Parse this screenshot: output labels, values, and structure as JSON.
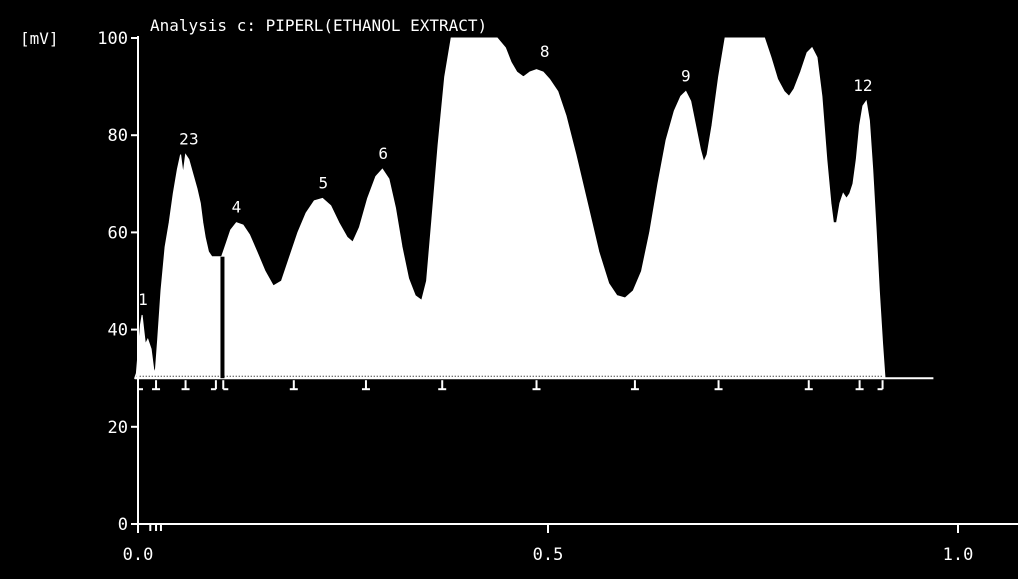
{
  "chart_data": {
    "type": "area",
    "title": "Analysis c: PIPERL(ETHANOL EXTRACT)",
    "ylabel": "[mV]",
    "xlabel": "",
    "xlim": [
      0.0,
      1.0
    ],
    "ylim": [
      0,
      100
    ],
    "x_ticks": [
      0.0,
      0.5,
      1.0
    ],
    "x_tick_labels": [
      "0.0",
      "0.5",
      "1.0"
    ],
    "y_ticks": [
      0,
      20,
      40,
      60,
      80,
      100
    ],
    "y_tick_labels": [
      "0",
      "20",
      "40",
      "60",
      "80",
      "100"
    ],
    "baseline": 30,
    "clip_max": 100,
    "fill_color": "#ffffff",
    "background_color": "#000000",
    "grid": false,
    "legend": "none",
    "series": [
      {
        "points": [
          [
            -0.004,
            30
          ],
          [
            -0.002,
            31
          ],
          [
            0.0,
            35
          ],
          [
            0.003,
            41
          ],
          [
            0.005,
            43
          ],
          [
            0.007,
            40
          ],
          [
            0.009,
            37
          ],
          [
            0.012,
            38
          ],
          [
            0.016,
            36
          ],
          [
            0.019,
            32
          ],
          [
            0.021,
            31
          ],
          [
            0.024,
            38
          ],
          [
            0.028,
            48
          ],
          [
            0.033,
            57
          ],
          [
            0.038,
            62
          ],
          [
            0.043,
            68
          ],
          [
            0.048,
            73
          ],
          [
            0.052,
            76
          ],
          [
            0.055,
            72
          ],
          [
            0.058,
            76
          ],
          [
            0.062,
            75
          ],
          [
            0.067,
            72
          ],
          [
            0.072,
            69
          ],
          [
            0.076,
            66
          ],
          [
            0.079,
            62
          ],
          [
            0.082,
            59
          ],
          [
            0.086,
            56
          ],
          [
            0.09,
            55
          ],
          [
            0.094,
            55
          ],
          [
            0.097,
            55
          ],
          [
            0.1,
            55
          ],
          [
            0.102,
            55
          ],
          [
            0.104,
            56
          ],
          [
            0.108,
            58
          ],
          [
            0.113,
            60.5
          ],
          [
            0.12,
            62
          ],
          [
            0.128,
            61.5
          ],
          [
            0.136,
            59.5
          ],
          [
            0.145,
            56
          ],
          [
            0.155,
            52
          ],
          [
            0.165,
            49
          ],
          [
            0.175,
            50
          ],
          [
            0.185,
            55
          ],
          [
            0.195,
            60
          ],
          [
            0.205,
            64
          ],
          [
            0.215,
            66.5
          ],
          [
            0.225,
            67
          ],
          [
            0.235,
            65.5
          ],
          [
            0.245,
            62
          ],
          [
            0.255,
            59
          ],
          [
            0.262,
            58
          ],
          [
            0.27,
            61
          ],
          [
            0.28,
            67
          ],
          [
            0.29,
            71.5
          ],
          [
            0.298,
            73
          ],
          [
            0.306,
            71
          ],
          [
            0.314,
            65
          ],
          [
            0.322,
            57
          ],
          [
            0.33,
            50.5
          ],
          [
            0.338,
            47
          ],
          [
            0.346,
            46
          ],
          [
            0.352,
            50
          ],
          [
            0.358,
            62
          ],
          [
            0.366,
            78
          ],
          [
            0.374,
            92
          ],
          [
            0.382,
            100
          ],
          [
            0.395,
            104
          ],
          [
            0.41,
            106
          ],
          [
            0.425,
            104
          ],
          [
            0.438,
            101
          ],
          [
            0.448,
            98
          ],
          [
            0.455,
            95
          ],
          [
            0.462,
            93
          ],
          [
            0.47,
            92
          ],
          [
            0.478,
            93
          ],
          [
            0.486,
            93.5
          ],
          [
            0.494,
            93
          ],
          [
            0.502,
            91.5
          ],
          [
            0.512,
            89
          ],
          [
            0.522,
            84
          ],
          [
            0.534,
            76
          ],
          [
            0.548,
            66
          ],
          [
            0.562,
            56
          ],
          [
            0.574,
            49.5
          ],
          [
            0.584,
            47
          ],
          [
            0.594,
            46.5
          ],
          [
            0.604,
            48
          ],
          [
            0.614,
            52
          ],
          [
            0.624,
            60
          ],
          [
            0.634,
            70
          ],
          [
            0.644,
            79
          ],
          [
            0.654,
            85
          ],
          [
            0.662,
            88
          ],
          [
            0.668,
            89
          ],
          [
            0.674,
            87
          ],
          [
            0.68,
            82
          ],
          [
            0.686,
            77
          ],
          [
            0.69,
            74.5
          ],
          [
            0.694,
            76
          ],
          [
            0.7,
            82
          ],
          [
            0.708,
            92
          ],
          [
            0.716,
            102
          ],
          [
            0.726,
            106
          ],
          [
            0.74,
            108
          ],
          [
            0.754,
            107
          ],
          [
            0.764,
            102
          ],
          [
            0.772,
            96
          ],
          [
            0.78,
            91.5
          ],
          [
            0.788,
            89
          ],
          [
            0.794,
            88
          ],
          [
            0.8,
            89.5
          ],
          [
            0.808,
            93
          ],
          [
            0.816,
            97
          ],
          [
            0.822,
            98
          ],
          [
            0.828,
            96
          ],
          [
            0.834,
            88
          ],
          [
            0.84,
            75
          ],
          [
            0.845,
            66
          ],
          [
            0.848,
            62
          ],
          [
            0.852,
            62
          ],
          [
            0.856,
            66
          ],
          [
            0.86,
            68
          ],
          [
            0.864,
            67
          ],
          [
            0.868,
            68
          ],
          [
            0.872,
            70
          ],
          [
            0.876,
            75
          ],
          [
            0.88,
            82
          ],
          [
            0.884,
            86
          ],
          [
            0.888,
            87
          ],
          [
            0.892,
            83
          ],
          [
            0.896,
            73
          ],
          [
            0.9,
            61
          ],
          [
            0.904,
            48
          ],
          [
            0.908,
            37
          ],
          [
            0.911,
            30
          ]
        ]
      }
    ],
    "peak_labels": [
      {
        "label": "1",
        "x": 0.006,
        "y": 43
      },
      {
        "label": "2",
        "x": 0.056,
        "y": 76
      },
      {
        "label": "3",
        "x": 0.068,
        "y": 76
      },
      {
        "label": "4",
        "x": 0.12,
        "y": 62
      },
      {
        "label": "5",
        "x": 0.226,
        "y": 67
      },
      {
        "label": "6",
        "x": 0.299,
        "y": 73
      },
      {
        "label": "8",
        "x": 0.496,
        "y": 94
      },
      {
        "label": "9",
        "x": 0.668,
        "y": 89
      },
      {
        "label": "12",
        "x": 0.884,
        "y": 87
      }
    ],
    "baseline_end_x": 0.97,
    "integration_markers": [
      {
        "x": 0.0,
        "style": "start"
      },
      {
        "x": 0.022,
        "style": "tick"
      },
      {
        "x": 0.058,
        "style": "tick"
      },
      {
        "x": 0.095,
        "style": "end"
      },
      {
        "x": 0.104,
        "style": "start"
      },
      {
        "x": 0.19,
        "style": "tick"
      },
      {
        "x": 0.278,
        "style": "tick"
      },
      {
        "x": 0.371,
        "style": "tick"
      },
      {
        "x": 0.486,
        "style": "tick"
      },
      {
        "x": 0.606,
        "style": "tick"
      },
      {
        "x": 0.708,
        "style": "tick"
      },
      {
        "x": 0.818,
        "style": "tick"
      },
      {
        "x": 0.88,
        "style": "tick"
      },
      {
        "x": 0.908,
        "style": "end"
      }
    ],
    "drop_lines": [
      {
        "x": 0.103,
        "y": 55
      }
    ]
  }
}
